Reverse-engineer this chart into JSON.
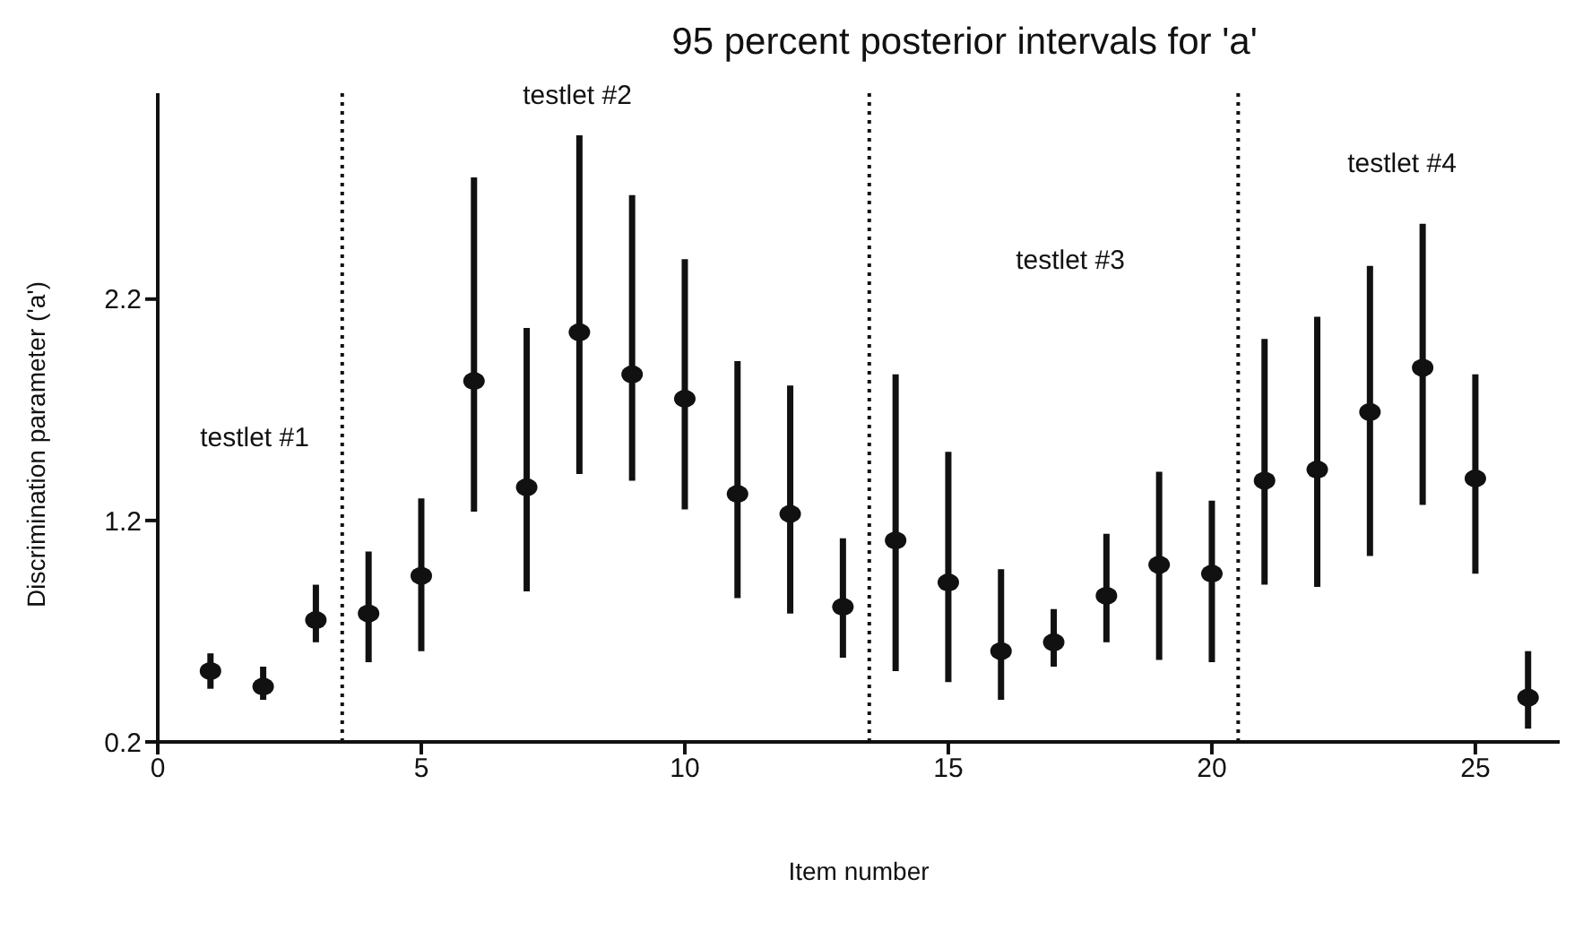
{
  "chart_data": {
    "type": "scatter",
    "title": "95 percent posterior intervals for 'a'",
    "xlabel": "Item number",
    "ylabel": "Discrimination parameter ('a')",
    "annotations": [
      "testlet #1",
      "testlet #2",
      "testlet #3",
      "testlet #4"
    ],
    "x": [
      1,
      2,
      3,
      4,
      5,
      6,
      7,
      8,
      9,
      10,
      11,
      12,
      13,
      14,
      15,
      16,
      17,
      18,
      19,
      20,
      21,
      22,
      23,
      24,
      25,
      26
    ],
    "series": [
      {
        "color": "#111111",
        "values": [
          0.52,
          0.45,
          0.75,
          0.78,
          0.95,
          1.83,
          1.35,
          2.05,
          1.86,
          1.75,
          1.32,
          1.23,
          0.81,
          1.11,
          0.92,
          0.61,
          0.65,
          0.86,
          1.0,
          0.96,
          1.38,
          1.43,
          1.69,
          1.89,
          1.39,
          0.4
        ],
        "errors": [
          [
            0.44,
            0.6
          ],
          [
            0.39,
            0.54
          ],
          [
            0.65,
            0.91
          ],
          [
            0.56,
            1.06
          ],
          [
            0.61,
            1.3
          ],
          [
            1.24,
            2.75
          ],
          [
            0.88,
            2.07
          ],
          [
            1.41,
            2.94
          ],
          [
            1.38,
            2.67
          ],
          [
            1.25,
            2.38
          ],
          [
            0.85,
            1.92
          ],
          [
            0.78,
            1.81
          ],
          [
            0.58,
            1.12
          ],
          [
            0.52,
            1.86
          ],
          [
            0.47,
            1.51
          ],
          [
            0.39,
            0.98
          ],
          [
            0.54,
            0.8
          ],
          [
            0.65,
            1.14
          ],
          [
            0.57,
            1.42
          ],
          [
            0.56,
            1.29
          ],
          [
            0.91,
            2.02
          ],
          [
            0.9,
            2.12
          ],
          [
            1.04,
            2.35
          ],
          [
            1.27,
            2.54
          ],
          [
            0.96,
            1.86
          ],
          [
            0.26,
            0.61
          ]
        ]
      }
    ],
    "xlim": [
      0,
      26.6
    ],
    "xticks": [
      0,
      5,
      10,
      15,
      20,
      25
    ],
    "ylim": [
      0.2,
      3.13
    ],
    "yticks": [
      0.2,
      1.2,
      2.2
    ],
    "ref_lines": [
      {
        "axis": "x",
        "value": 3.5,
        "line_style": "dotted"
      },
      {
        "axis": "x",
        "value": 13.5,
        "line_style": "dotted"
      },
      {
        "axis": "x",
        "value": 20.5,
        "line_style": "dotted"
      }
    ],
    "marker": "circle"
  }
}
